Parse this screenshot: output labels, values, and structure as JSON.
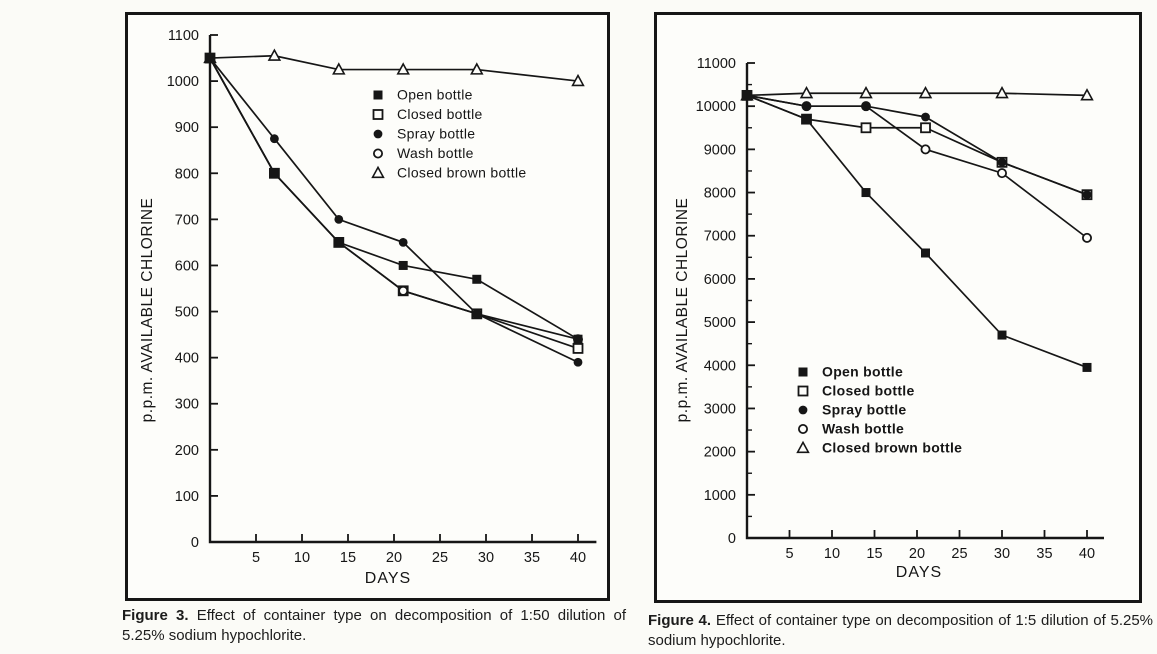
{
  "page": {
    "background": "#fbfbf7",
    "ink": "#161616"
  },
  "figures": [
    {
      "caption_label": "Figure 3.",
      "caption_text": "Effect of container type on decomposition of 1:50 dilution of 5.25% sodium hypochlorite."
    },
    {
      "caption_label": "Figure 4.",
      "caption_text": "Effect of container type on decomposition of 1:5 dilution of 5.25% sodium hypochlorite."
    }
  ],
  "chart_data": [
    {
      "type": "line",
      "figure": "Figure 3",
      "title": "",
      "xlabel": "DAYS",
      "ylabel": "p.p.m. AVAILABLE CHLORINE",
      "xlim": [
        0,
        42
      ],
      "ylim": [
        0,
        1100
      ],
      "x_ticks": [
        5,
        10,
        15,
        20,
        25,
        30,
        35,
        40
      ],
      "y_ticks": [
        0,
        100,
        200,
        300,
        400,
        500,
        600,
        700,
        800,
        900,
        1000,
        1100
      ],
      "grid": false,
      "legend_position": "inside-upper-right",
      "x": [
        0,
        7,
        14,
        21,
        29,
        40
      ],
      "series": [
        {
          "name": "Open bottle",
          "marker": "filled-square",
          "values": [
            1050,
            800,
            650,
            600,
            570,
            440
          ]
        },
        {
          "name": "Closed bottle",
          "marker": "open-square",
          "values": [
            1050,
            800,
            650,
            545,
            495,
            420
          ]
        },
        {
          "name": "Spray bottle",
          "marker": "filled-circle",
          "values": [
            1050,
            875,
            700,
            650,
            495,
            390
          ]
        },
        {
          "name": "Wash bottle",
          "marker": "open-circle",
          "values": [
            1050,
            800,
            650,
            545,
            495,
            440
          ]
        },
        {
          "name": "Closed brown bottle",
          "marker": "open-triangle",
          "values": [
            1050,
            1055,
            1025,
            1025,
            1025,
            1000
          ]
        }
      ]
    },
    {
      "type": "line",
      "figure": "Figure 4",
      "title": "",
      "xlabel": "DAYS",
      "ylabel": "p.p.m. AVAILABLE CHLORINE",
      "xlim": [
        0,
        42
      ],
      "ylim": [
        0,
        11000
      ],
      "x_ticks": [
        5,
        10,
        15,
        20,
        25,
        30,
        35,
        40
      ],
      "y_ticks": [
        0,
        1000,
        2000,
        3000,
        4000,
        5000,
        6000,
        7000,
        8000,
        9000,
        10000,
        11000
      ],
      "y_minor_step": 500,
      "grid": false,
      "legend_position": "inside-center-left",
      "x": [
        0,
        7,
        14,
        21,
        30,
        40
      ],
      "series": [
        {
          "name": "Open bottle",
          "marker": "filled-square",
          "values": [
            10250,
            9700,
            8000,
            6600,
            4700,
            3950
          ]
        },
        {
          "name": "Closed bottle",
          "marker": "open-square",
          "values": [
            10250,
            9700,
            9500,
            9500,
            8700,
            7950
          ]
        },
        {
          "name": "Spray bottle",
          "marker": "filled-circle",
          "values": [
            10250,
            10000,
            10000,
            9750,
            8700,
            7950
          ]
        },
        {
          "name": "Wash bottle",
          "marker": "open-circle",
          "values": [
            10250,
            10000,
            10000,
            9000,
            8450,
            6950
          ]
        },
        {
          "name": "Closed brown bottle",
          "marker": "open-triangle",
          "values": [
            10250,
            10300,
            10300,
            10300,
            10300,
            10250
          ]
        }
      ]
    }
  ]
}
